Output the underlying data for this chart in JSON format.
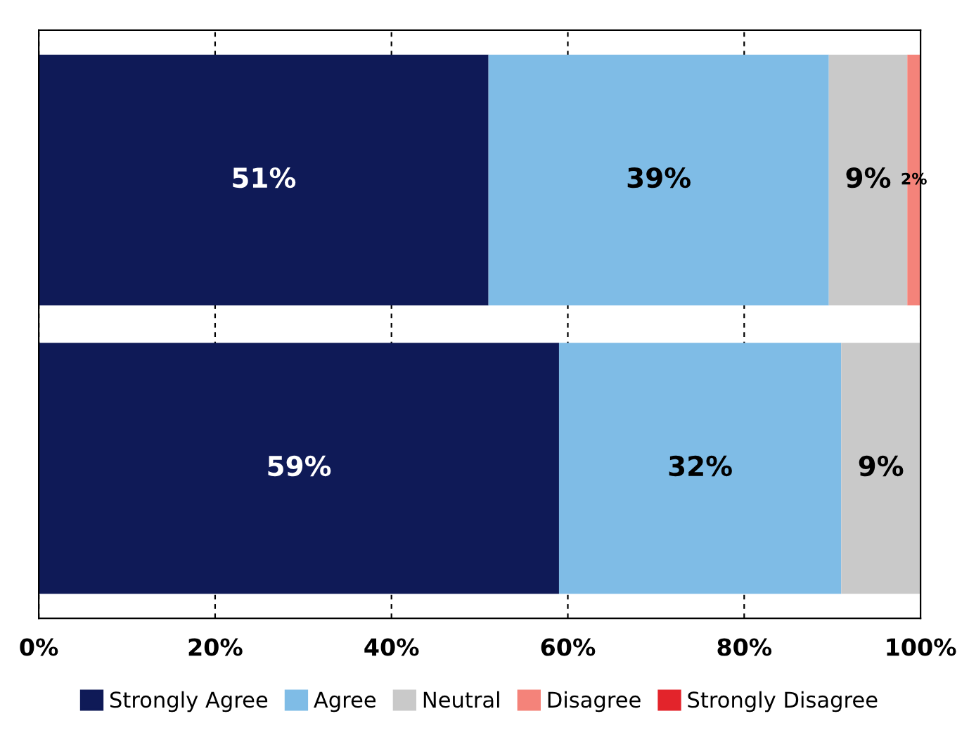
{
  "chart_data": {
    "type": "bar",
    "orientation": "horizontal",
    "stacked": true,
    "categories": [
      null,
      null
    ],
    "series": [
      {
        "name": "Strongly Agree",
        "color": "#0f1a57",
        "values": [
          51,
          59
        ],
        "value_labels": [
          "51%",
          "59%"
        ]
      },
      {
        "name": "Agree",
        "color": "#7fbce6",
        "values": [
          38.6,
          32
        ],
        "value_labels": [
          "39%",
          "32%"
        ]
      },
      {
        "name": "Neutral",
        "color": "#c9c9c9",
        "values": [
          8.9,
          9
        ],
        "value_labels": [
          "9%",
          "9%"
        ]
      },
      {
        "name": "Disagree",
        "color": "#f4837a",
        "values": [
          1.5,
          0
        ],
        "value_labels": [
          "2%",
          null
        ]
      },
      {
        "name": "Strongly Disagree",
        "color": "#e3242b",
        "values": [
          0,
          0
        ],
        "value_labels": [
          null,
          null
        ]
      }
    ],
    "xlim": [
      0,
      100
    ],
    "xticks": [
      {
        "value": 0,
        "label": "0%"
      },
      {
        "value": 20,
        "label": "20%"
      },
      {
        "value": 40,
        "label": "40%"
      },
      {
        "value": 60,
        "label": "60%"
      },
      {
        "value": 80,
        "label": "80%"
      },
      {
        "value": 100,
        "label": "100%"
      }
    ],
    "grid": "x",
    "legend": "bottom",
    "tick_labels": "x"
  }
}
